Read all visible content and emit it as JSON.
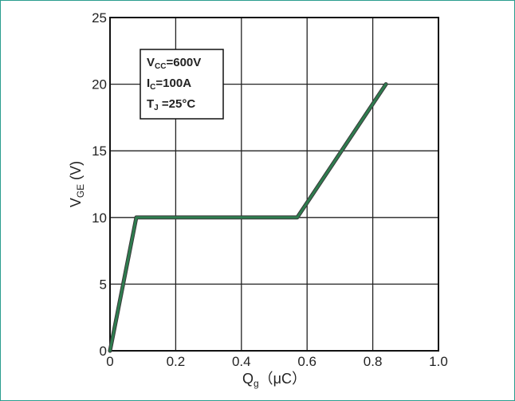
{
  "chart_data": {
    "type": "line",
    "series": [
      {
        "x": [
          0.0,
          0.08,
          0.57,
          0.84
        ],
        "y": [
          0,
          10,
          10,
          20
        ]
      }
    ],
    "x_ticks": [
      "0",
      "0.2",
      "0.4",
      "0.6",
      "0.8",
      "1.0"
    ],
    "y_ticks": [
      "0",
      "5",
      "10",
      "15",
      "20",
      "25"
    ],
    "xlabel_main": "Q",
    "xlabel_sub": "g",
    "xlabel_unit": "（μC）",
    "ylabel_main": "V",
    "ylabel_sub": "GE",
    "ylabel_unit": " (V)",
    "xlim": [
      0,
      1.0
    ],
    "ylim": [
      0,
      25
    ],
    "grid": true,
    "annotation": {
      "lines": [
        {
          "main": "V",
          "sub": "CC",
          "rest": "=600V"
        },
        {
          "main": "I",
          "sub": "C",
          "rest": "=100A"
        },
        {
          "main": "T",
          "sub": "J",
          "rest": " =25°C"
        }
      ]
    },
    "colors": {
      "line": "#2e7d4f",
      "line_outline": "#3a3a3a",
      "frame": "#2a9d8f"
    }
  }
}
